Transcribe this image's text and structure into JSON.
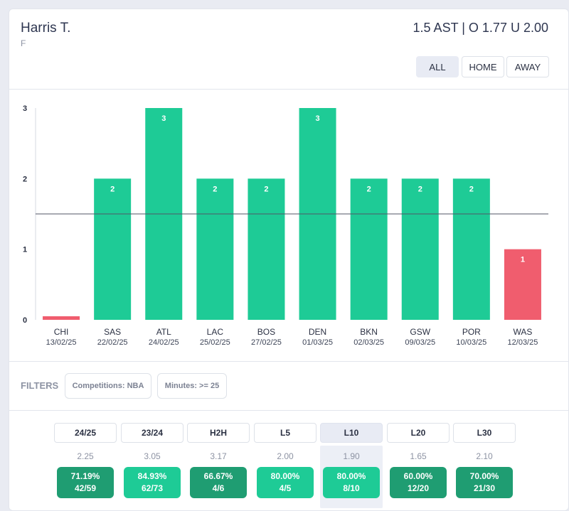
{
  "player": {
    "name": "Harris T.",
    "position": "F"
  },
  "market": {
    "label": "1.5 AST | O 1.77 U 2.00",
    "line": 1.5
  },
  "venue_filters": [
    {
      "label": "ALL",
      "active": true
    },
    {
      "label": "HOME",
      "active": false
    },
    {
      "label": "AWAY",
      "active": false
    }
  ],
  "colors": {
    "over": "#1ecb96",
    "under": "#f05d6e",
    "dark_green": "#1f9d72",
    "active_bg": "#e8ebf4"
  },
  "chart_data": {
    "type": "bar",
    "title": "",
    "xlabel": "",
    "ylabel": "",
    "ylim": [
      0,
      3
    ],
    "yticks": [
      0,
      1,
      2,
      3
    ],
    "threshold": 1.5,
    "categories": [
      "CHI",
      "SAS",
      "ATL",
      "LAC",
      "BOS",
      "DEN",
      "BKN",
      "GSW",
      "POR",
      "WAS"
    ],
    "dates": [
      "13/02/25",
      "22/02/25",
      "24/02/25",
      "25/02/25",
      "27/02/25",
      "01/03/25",
      "02/03/25",
      "09/03/25",
      "10/03/25",
      "12/03/25"
    ],
    "values": [
      0,
      2,
      3,
      2,
      2,
      3,
      2,
      2,
      2,
      1
    ],
    "labels": [
      "",
      "2",
      "3",
      "2",
      "2",
      "3",
      "2",
      "2",
      "2",
      "1"
    ]
  },
  "filters": {
    "label": "FILTERS",
    "chips": [
      "Competitions: NBA",
      "Minutes: >= 25"
    ]
  },
  "periods": [
    {
      "label": "24/25",
      "avg": "2.25",
      "pct": "71.19%",
      "ratio": "42/59",
      "tone": "dark",
      "active": false
    },
    {
      "label": "23/24",
      "avg": "3.05",
      "pct": "84.93%",
      "ratio": "62/73",
      "tone": "light",
      "active": false
    },
    {
      "label": "H2H",
      "avg": "3.17",
      "pct": "66.67%",
      "ratio": "4/6",
      "tone": "dark",
      "active": false
    },
    {
      "label": "L5",
      "avg": "2.00",
      "pct": "80.00%",
      "ratio": "4/5",
      "tone": "light",
      "active": false
    },
    {
      "label": "L10",
      "avg": "1.90",
      "pct": "80.00%",
      "ratio": "8/10",
      "tone": "light",
      "active": true
    },
    {
      "label": "L20",
      "avg": "1.65",
      "pct": "60.00%",
      "ratio": "12/20",
      "tone": "dark",
      "active": false
    },
    {
      "label": "L30",
      "avg": "2.10",
      "pct": "70.00%",
      "ratio": "21/30",
      "tone": "dark",
      "active": false
    }
  ]
}
